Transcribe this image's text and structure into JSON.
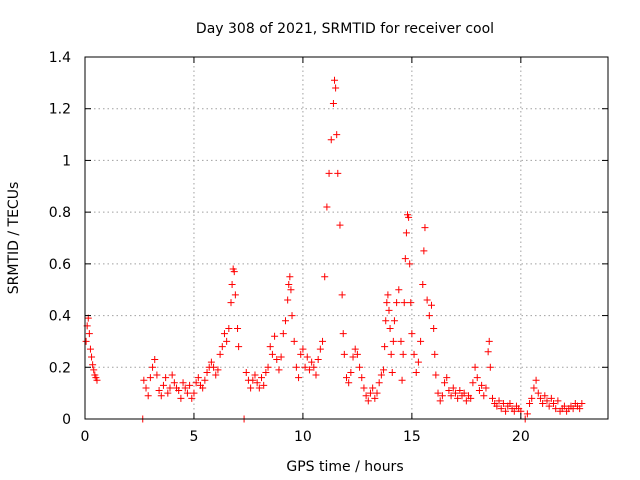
{
  "chart_data": {
    "type": "scatter",
    "title": "Day 308 of 2021, SRMTID for receiver cool",
    "xlabel": "GPS time / hours",
    "ylabel": "SRMTID / TECUs",
    "xlim": [
      0,
      24
    ],
    "ylim": [
      0,
      1.4
    ],
    "xticks": [
      0,
      5,
      10,
      15,
      20
    ],
    "xtick_labels": [
      "0",
      "5",
      "10",
      "15",
      "20"
    ],
    "yticks": [
      0,
      0.2,
      0.4,
      0.6,
      0.8,
      1.0,
      1.2,
      1.4
    ],
    "ytick_labels": [
      "0",
      "0.2",
      "0.4",
      "0.6",
      "0.8",
      "1",
      "1.2",
      "1.4"
    ],
    "grid": true,
    "marker": "+",
    "color": "#ff0000",
    "series": [
      {
        "name": "SRMTID",
        "points": [
          [
            0.05,
            0.3
          ],
          [
            0.1,
            0.36
          ],
          [
            0.15,
            0.39
          ],
          [
            0.2,
            0.33
          ],
          [
            0.25,
            0.27
          ],
          [
            0.3,
            0.24
          ],
          [
            0.35,
            0.21
          ],
          [
            0.4,
            0.19
          ],
          [
            0.45,
            0.17
          ],
          [
            0.5,
            0.16
          ],
          [
            0.55,
            0.15
          ],
          [
            2.65,
            0.0
          ],
          [
            2.7,
            0.15
          ],
          [
            2.8,
            0.12
          ],
          [
            2.9,
            0.09
          ],
          [
            3.0,
            0.16
          ],
          [
            3.1,
            0.2
          ],
          [
            3.2,
            0.23
          ],
          [
            3.3,
            0.17
          ],
          [
            3.4,
            0.11
          ],
          [
            3.5,
            0.09
          ],
          [
            3.6,
            0.13
          ],
          [
            3.7,
            0.16
          ],
          [
            3.8,
            0.1
          ],
          [
            3.9,
            0.12
          ],
          [
            4.0,
            0.17
          ],
          [
            4.1,
            0.14
          ],
          [
            4.2,
            0.12
          ],
          [
            4.3,
            0.11
          ],
          [
            4.4,
            0.08
          ],
          [
            4.5,
            0.14
          ],
          [
            4.6,
            0.12
          ],
          [
            4.7,
            0.1
          ],
          [
            4.8,
            0.13
          ],
          [
            4.9,
            0.08
          ],
          [
            5.0,
            0.1
          ],
          [
            5.1,
            0.14
          ],
          [
            5.2,
            0.16
          ],
          [
            5.3,
            0.13
          ],
          [
            5.4,
            0.12
          ],
          [
            5.5,
            0.15
          ],
          [
            5.6,
            0.18
          ],
          [
            5.7,
            0.2
          ],
          [
            5.8,
            0.22
          ],
          [
            5.9,
            0.2
          ],
          [
            6.0,
            0.17
          ],
          [
            6.1,
            0.19
          ],
          [
            6.2,
            0.25
          ],
          [
            6.3,
            0.28
          ],
          [
            6.4,
            0.33
          ],
          [
            6.5,
            0.3
          ],
          [
            6.6,
            0.35
          ],
          [
            6.7,
            0.45
          ],
          [
            6.75,
            0.52
          ],
          [
            6.8,
            0.58
          ],
          [
            6.85,
            0.57
          ],
          [
            6.9,
            0.48
          ],
          [
            7.0,
            0.35
          ],
          [
            7.05,
            0.28
          ],
          [
            7.3,
            0.0
          ],
          [
            7.4,
            0.18
          ],
          [
            7.5,
            0.15
          ],
          [
            7.6,
            0.12
          ],
          [
            7.7,
            0.15
          ],
          [
            7.8,
            0.17
          ],
          [
            7.9,
            0.14
          ],
          [
            8.0,
            0.12
          ],
          [
            8.1,
            0.16
          ],
          [
            8.2,
            0.13
          ],
          [
            8.3,
            0.18
          ],
          [
            8.4,
            0.2
          ],
          [
            8.5,
            0.28
          ],
          [
            8.6,
            0.25
          ],
          [
            8.7,
            0.32
          ],
          [
            8.8,
            0.23
          ],
          [
            8.9,
            0.19
          ],
          [
            9.0,
            0.24
          ],
          [
            9.1,
            0.33
          ],
          [
            9.2,
            0.38
          ],
          [
            9.3,
            0.46
          ],
          [
            9.35,
            0.52
          ],
          [
            9.4,
            0.55
          ],
          [
            9.45,
            0.5
          ],
          [
            9.5,
            0.4
          ],
          [
            9.6,
            0.3
          ],
          [
            9.7,
            0.2
          ],
          [
            9.8,
            0.16
          ],
          [
            9.9,
            0.25
          ],
          [
            10.0,
            0.27
          ],
          [
            10.1,
            0.2
          ],
          [
            10.2,
            0.24
          ],
          [
            10.3,
            0.19
          ],
          [
            10.4,
            0.22
          ],
          [
            10.5,
            0.2
          ],
          [
            10.6,
            0.17
          ],
          [
            10.7,
            0.23
          ],
          [
            10.8,
            0.27
          ],
          [
            10.9,
            0.3
          ],
          [
            11.0,
            0.55
          ],
          [
            11.1,
            0.82
          ],
          [
            11.2,
            0.95
          ],
          [
            11.3,
            1.08
          ],
          [
            11.4,
            1.22
          ],
          [
            11.45,
            1.31
          ],
          [
            11.5,
            1.28
          ],
          [
            11.55,
            1.1
          ],
          [
            11.6,
            0.95
          ],
          [
            11.7,
            0.75
          ],
          [
            11.8,
            0.48
          ],
          [
            11.85,
            0.33
          ],
          [
            11.9,
            0.25
          ],
          [
            12.0,
            0.16
          ],
          [
            12.1,
            0.14
          ],
          [
            12.2,
            0.18
          ],
          [
            12.3,
            0.24
          ],
          [
            12.4,
            0.27
          ],
          [
            12.5,
            0.25
          ],
          [
            12.6,
            0.2
          ],
          [
            12.7,
            0.16
          ],
          [
            12.8,
            0.12
          ],
          [
            12.9,
            0.09
          ],
          [
            13.0,
            0.07
          ],
          [
            13.1,
            0.1
          ],
          [
            13.2,
            0.12
          ],
          [
            13.3,
            0.08
          ],
          [
            13.4,
            0.1
          ],
          [
            13.5,
            0.14
          ],
          [
            13.6,
            0.17
          ],
          [
            13.7,
            0.19
          ],
          [
            13.75,
            0.28
          ],
          [
            13.8,
            0.38
          ],
          [
            13.85,
            0.45
          ],
          [
            13.9,
            0.48
          ],
          [
            13.95,
            0.42
          ],
          [
            14.0,
            0.35
          ],
          [
            14.05,
            0.25
          ],
          [
            14.1,
            0.18
          ],
          [
            14.15,
            0.3
          ],
          [
            14.2,
            0.38
          ],
          [
            14.3,
            0.45
          ],
          [
            14.4,
            0.5
          ],
          [
            14.5,
            0.3
          ],
          [
            14.55,
            0.15
          ],
          [
            14.6,
            0.25
          ],
          [
            14.65,
            0.45
          ],
          [
            14.7,
            0.62
          ],
          [
            14.75,
            0.72
          ],
          [
            14.8,
            0.79
          ],
          [
            14.85,
            0.78
          ],
          [
            14.9,
            0.6
          ],
          [
            14.95,
            0.45
          ],
          [
            15.0,
            0.33
          ],
          [
            15.1,
            0.25
          ],
          [
            15.2,
            0.18
          ],
          [
            15.3,
            0.22
          ],
          [
            15.4,
            0.3
          ],
          [
            15.5,
            0.52
          ],
          [
            15.55,
            0.65
          ],
          [
            15.6,
            0.74
          ],
          [
            15.7,
            0.46
          ],
          [
            15.8,
            0.4
          ],
          [
            15.9,
            0.44
          ],
          [
            16.0,
            0.35
          ],
          [
            16.05,
            0.25
          ],
          [
            16.1,
            0.17
          ],
          [
            16.2,
            0.1
          ],
          [
            16.3,
            0.07
          ],
          [
            16.4,
            0.09
          ],
          [
            16.5,
            0.14
          ],
          [
            16.6,
            0.16
          ],
          [
            16.7,
            0.11
          ],
          [
            16.8,
            0.09
          ],
          [
            16.9,
            0.12
          ],
          [
            17.0,
            0.1
          ],
          [
            17.1,
            0.08
          ],
          [
            17.2,
            0.11
          ],
          [
            17.3,
            0.09
          ],
          [
            17.4,
            0.1
          ],
          [
            17.5,
            0.07
          ],
          [
            17.6,
            0.09
          ],
          [
            17.7,
            0.08
          ],
          [
            17.8,
            0.14
          ],
          [
            17.9,
            0.2
          ],
          [
            18.0,
            0.16
          ],
          [
            18.1,
            0.11
          ],
          [
            18.2,
            0.13
          ],
          [
            18.3,
            0.09
          ],
          [
            18.4,
            0.12
          ],
          [
            18.5,
            0.26
          ],
          [
            18.55,
            0.3
          ],
          [
            18.6,
            0.2
          ],
          [
            18.7,
            0.08
          ],
          [
            18.8,
            0.06
          ],
          [
            18.9,
            0.05
          ],
          [
            19.0,
            0.07
          ],
          [
            19.1,
            0.04
          ],
          [
            19.2,
            0.06
          ],
          [
            19.3,
            0.03
          ],
          [
            19.4,
            0.05
          ],
          [
            19.5,
            0.06
          ],
          [
            19.6,
            0.04
          ],
          [
            19.7,
            0.03
          ],
          [
            19.8,
            0.05
          ],
          [
            19.9,
            0.04
          ],
          [
            20.0,
            0.03
          ],
          [
            20.2,
            0.0
          ],
          [
            20.3,
            0.02
          ],
          [
            20.4,
            0.06
          ],
          [
            20.5,
            0.08
          ],
          [
            20.6,
            0.12
          ],
          [
            20.7,
            0.15
          ],
          [
            20.8,
            0.1
          ],
          [
            20.9,
            0.08
          ],
          [
            21.0,
            0.06
          ],
          [
            21.1,
            0.09
          ],
          [
            21.2,
            0.07
          ],
          [
            21.3,
            0.05
          ],
          [
            21.4,
            0.08
          ],
          [
            21.5,
            0.06
          ],
          [
            21.6,
            0.04
          ],
          [
            21.7,
            0.07
          ],
          [
            21.8,
            0.03
          ],
          [
            21.9,
            0.04
          ],
          [
            22.0,
            0.05
          ],
          [
            22.1,
            0.03
          ],
          [
            22.2,
            0.04
          ],
          [
            22.3,
            0.05
          ],
          [
            22.4,
            0.04
          ],
          [
            22.5,
            0.06
          ],
          [
            22.6,
            0.05
          ],
          [
            22.7,
            0.04
          ],
          [
            22.8,
            0.06
          ]
        ]
      }
    ]
  }
}
